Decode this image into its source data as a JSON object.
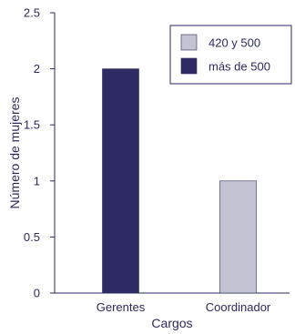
{
  "chart_data": {
    "type": "bar",
    "categories": [
      "Gerentes",
      "Coordinador"
    ],
    "series": [
      {
        "name": "420 y 500",
        "color": "#c4c3d3",
        "values": [
          0,
          1
        ]
      },
      {
        "name": "más de 500",
        "color": "#2e2a63",
        "values": [
          2,
          0
        ]
      }
    ],
    "xlabel": "Cargos",
    "ylabel": "Número de mujeres",
    "ylim": [
      0,
      2.5
    ],
    "yticks": [
      0,
      0.5,
      1,
      1.5,
      2,
      2.5
    ],
    "ytick_labels": [
      "0",
      "0.5",
      "1",
      "1.5",
      "2",
      "2.5"
    ],
    "grid": false,
    "legend_position": "top-right"
  }
}
